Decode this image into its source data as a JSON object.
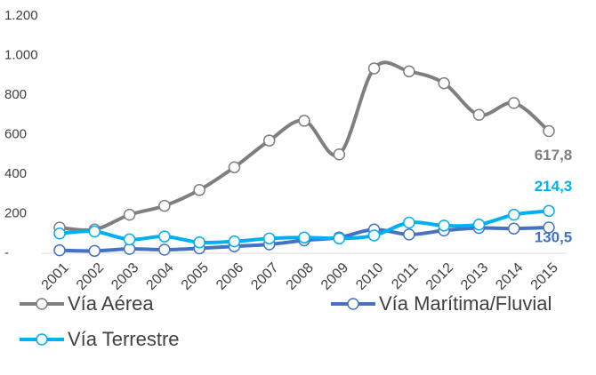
{
  "chart_data": {
    "type": "line",
    "categories": [
      "2001",
      "2002",
      "2003",
      "2004",
      "2005",
      "2006",
      "2007",
      "2008",
      "2009",
      "2010",
      "2011",
      "2012",
      "2013",
      "2014",
      "2015"
    ],
    "series": [
      {
        "name": "Vía Aérea",
        "color": "#7f7f7f",
        "values": [
          130,
          120,
          195,
          240,
          320,
          435,
          570,
          670,
          500,
          935,
          920,
          860,
          700,
          760,
          617.8
        ],
        "value_labels": [
          null,
          null,
          null,
          null,
          null,
          null,
          null,
          null,
          null,
          null,
          null,
          null,
          null,
          null,
          "617,8"
        ]
      },
      {
        "name": "Vía Marítima/Fluvial",
        "color": "#4472c4",
        "values": [
          15,
          12,
          22,
          18,
          25,
          35,
          45,
          65,
          80,
          120,
          95,
          115,
          128,
          125,
          130.5
        ],
        "value_labels": [
          null,
          null,
          null,
          null,
          null,
          null,
          null,
          null,
          null,
          null,
          null,
          null,
          null,
          null,
          "130,5"
        ]
      },
      {
        "name": "Vía Terrestre",
        "color": "#00b0f0",
        "values": [
          100,
          110,
          70,
          85,
          55,
          60,
          75,
          80,
          75,
          90,
          155,
          140,
          145,
          195,
          214.3
        ],
        "value_labels": [
          null,
          null,
          null,
          null,
          null,
          null,
          null,
          null,
          null,
          null,
          null,
          null,
          null,
          null,
          "214,3"
        ]
      }
    ],
    "ylim": [
      0,
      1200
    ],
    "yticks": [
      {
        "value": 0,
        "label": "-"
      },
      200,
      400,
      600,
      800,
      {
        "value": 1000,
        "label": "1.000"
      },
      {
        "value": 1200,
        "label": "1.200"
      }
    ],
    "grid": false
  }
}
